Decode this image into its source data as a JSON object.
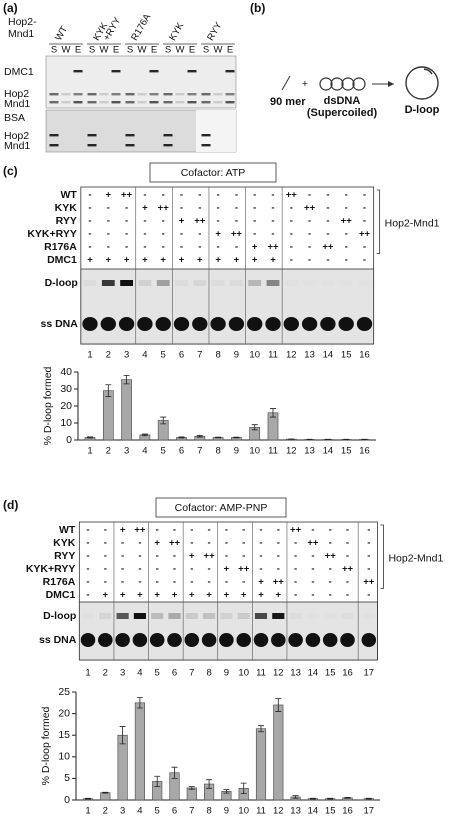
{
  "panel_a": {
    "label": "(a)",
    "protein_label": [
      "Hop2-",
      "Mnd1"
    ],
    "groups": [
      [
        "WT"
      ],
      [
        "KYK",
        "+RYY"
      ],
      [
        "R176A"
      ],
      [
        "KYK"
      ],
      [
        "RYY"
      ]
    ],
    "fractions": [
      "S",
      "W",
      "E"
    ],
    "band_labels": [
      "DMC1",
      "Hop2",
      "Mnd1",
      "BSA",
      "Hop2",
      "Mnd1"
    ]
  },
  "panel_b": {
    "label": "(b)",
    "oligo": "90 mer",
    "plus": "+",
    "dsdna": [
      "dsDNA",
      "(Supercoiled)"
    ],
    "product": "D-loop"
  },
  "panel_c": {
    "label": "(c)",
    "cofactor": "Cofactor: ATP",
    "bracket_label": "Hop2-Mnd1",
    "gel_labels": [
      "D-loop",
      "ss DNA"
    ],
    "rows": [
      {
        "name": "WT",
        "marks": [
          "-",
          "+",
          "++",
          "-",
          "-",
          "-",
          "-",
          "-",
          "-",
          "-",
          "-",
          "++",
          "-",
          "-",
          "-",
          "-"
        ]
      },
      {
        "name": "KYK",
        "marks": [
          "-",
          "-",
          "-",
          "+",
          "++",
          "-",
          "-",
          "-",
          "-",
          "-",
          "-",
          "-",
          "++",
          "-",
          "-",
          "-"
        ]
      },
      {
        "name": "RYY",
        "marks": [
          "-",
          "-",
          "-",
          "-",
          "-",
          "+",
          "++",
          "-",
          "-",
          "-",
          "-",
          "-",
          "-",
          "-",
          "++",
          "-"
        ]
      },
      {
        "name": "KYK+RYY",
        "marks": [
          "-",
          "-",
          "-",
          "-",
          "-",
          "-",
          "-",
          "+",
          "++",
          "-",
          "-",
          "-",
          "-",
          "-",
          "-",
          "++"
        ]
      },
      {
        "name": "R176A",
        "marks": [
          "-",
          "-",
          "-",
          "-",
          "-",
          "-",
          "-",
          "-",
          "-",
          "+",
          "++",
          "-",
          "-",
          "++",
          "-",
          "-"
        ]
      },
      {
        "name": "DMC1",
        "marks": [
          "+",
          "+",
          "+",
          "+",
          "+",
          "+",
          "+",
          "+",
          "+",
          "+",
          "+",
          "-",
          "-",
          "-",
          "-",
          "-"
        ]
      }
    ],
    "lanes": [
      "1",
      "2",
      "3",
      "4",
      "5",
      "6",
      "7",
      "8",
      "9",
      "10",
      "11",
      "12",
      "13",
      "14",
      "15",
      "16"
    ]
  },
  "panel_d": {
    "label": "(d)",
    "cofactor": "Cofactor: AMP-PNP",
    "bracket_label": "Hop2-Mnd1",
    "gel_labels": [
      "D-loop",
      "ss DNA"
    ],
    "rows": [
      {
        "name": "WT",
        "marks": [
          "-",
          "-",
          "+",
          "++",
          "-",
          "-",
          "-",
          "-",
          "-",
          "-",
          "-",
          "-",
          "++",
          "-",
          "-",
          "-",
          "-"
        ]
      },
      {
        "name": "KYK",
        "marks": [
          "-",
          "-",
          "-",
          "-",
          "+",
          "++",
          "-",
          "-",
          "-",
          "-",
          "-",
          "-",
          "-",
          "++",
          "-",
          "-",
          "-"
        ]
      },
      {
        "name": "RYY",
        "marks": [
          "-",
          "-",
          "-",
          "-",
          "-",
          "-",
          "+",
          "++",
          "-",
          "-",
          "-",
          "-",
          "-",
          "-",
          "++",
          "-",
          "-"
        ]
      },
      {
        "name": "KYK+RYY",
        "marks": [
          "-",
          "-",
          "-",
          "-",
          "-",
          "-",
          "-",
          "-",
          "+",
          "++",
          "-",
          "-",
          "-",
          "-",
          "-",
          "++",
          "-"
        ]
      },
      {
        "name": "R176A",
        "marks": [
          "-",
          "-",
          "-",
          "-",
          "-",
          "-",
          "-",
          "-",
          "-",
          "-",
          "+",
          "++",
          "-",
          "-",
          "-",
          "-",
          "++"
        ]
      },
      {
        "name": "DMC1",
        "marks": [
          "-",
          "+",
          "+",
          "+",
          "+",
          "+",
          "+",
          "+",
          "+",
          "+",
          "+",
          "+",
          "-",
          "-",
          "-",
          "-",
          "-"
        ]
      }
    ],
    "lanes": [
      "1",
      "2",
      "3",
      "4",
      "5",
      "6",
      "7",
      "8",
      "9",
      "10",
      "11",
      "12",
      "13",
      "14",
      "15",
      "16",
      "17"
    ]
  },
  "chart_data": [
    {
      "type": "bar",
      "y_label": "% D-loop formed",
      "color": "#a8a8a8",
      "categories": [
        "1",
        "2",
        "3",
        "4",
        "5",
        "6",
        "7",
        "8",
        "9",
        "10",
        "11",
        "12",
        "13",
        "14",
        "15",
        "16"
      ],
      "values": [
        1.5,
        29,
        35.5,
        3,
        11.5,
        1.5,
        2.2,
        1.5,
        1.5,
        7.5,
        16,
        0.5,
        0.3,
        0.3,
        0.3,
        0.3
      ],
      "errors": [
        0.3,
        3.5,
        2.5,
        0.5,
        2,
        0.3,
        0.5,
        0.2,
        0.2,
        1.5,
        2.5,
        0.1,
        0.1,
        0.1,
        0.1,
        0.1
      ],
      "ylim": [
        0,
        40
      ],
      "yticks": [
        0,
        10,
        20,
        30,
        40
      ]
    },
    {
      "type": "bar",
      "y_label": "% D-loop formed",
      "color": "#a8a8a8",
      "categories": [
        "1",
        "2",
        "3",
        "4",
        "5",
        "6",
        "7",
        "8",
        "9",
        "10",
        "11",
        "12",
        "13",
        "14",
        "15",
        "16",
        "17"
      ],
      "values": [
        0.3,
        1.7,
        15,
        22.5,
        4.3,
        6.3,
        2.8,
        3.7,
        2,
        2.7,
        16.5,
        22,
        0.7,
        0.3,
        0.3,
        0.5,
        0.3
      ],
      "errors": [
        0.1,
        0.1,
        2,
        1.2,
        1.2,
        1.3,
        0.3,
        1,
        0.4,
        1.2,
        0.7,
        1.5,
        0.3,
        0.1,
        0.1,
        0.1,
        0.1
      ],
      "ylim": [
        0,
        25
      ],
      "yticks": [
        0,
        5,
        10,
        15,
        20,
        25
      ]
    }
  ]
}
